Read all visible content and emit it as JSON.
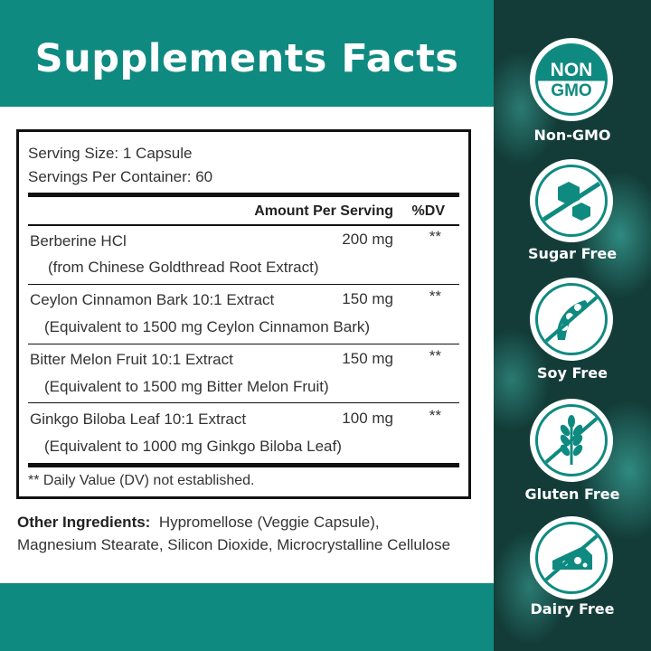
{
  "header": {
    "title": "Supplements Facts"
  },
  "facts": {
    "serving_size": "Serving Size: 1 Capsule",
    "servings_per_container": "Servings Per Container: 60",
    "col_amount": "Amount Per Serving",
    "col_dv": "%DV",
    "rows": [
      {
        "name": "Berberine HCl",
        "sub": "(from Chinese Goldthread Root Extract)",
        "amount": "200 mg",
        "dv": "**"
      },
      {
        "name": "Ceylon Cinnamon Bark 10:1 Extract",
        "sub": "(Equivalent to 1500 mg Ceylon Cinnamon Bark)",
        "amount": "150 mg",
        "dv": "**"
      },
      {
        "name": "Bitter Melon Fruit 10:1 Extract",
        "sub": "(Equivalent to 1500 mg Bitter Melon Fruit)",
        "amount": "150 mg",
        "dv": "**"
      },
      {
        "name": "Ginkgo Biloba Leaf 10:1 Extract",
        "sub": "(Equivalent to 1000 mg Ginkgo Biloba Leaf)",
        "amount": "100 mg",
        "dv": "**"
      }
    ],
    "footnote": "** Daily Value (DV) not established."
  },
  "other": {
    "label": "Other Ingredients:",
    "line1": "Hypromellose (Veggie Capsule),",
    "line2": "Magnesium Stearate, Silicon Dioxide, Microcrystalline Cellulose"
  },
  "badges": [
    {
      "label": "Non-GMO",
      "icon": "non-gmo-icon",
      "top": "NON",
      "bottom": "GMO"
    },
    {
      "label": "Sugar Free",
      "icon": "sugar-cube-icon"
    },
    {
      "label": "Soy Free",
      "icon": "soybean-icon"
    },
    {
      "label": "Gluten Free",
      "icon": "wheat-icon"
    },
    {
      "label": "Dairy Free",
      "icon": "cheese-icon"
    }
  ],
  "colors": {
    "brand": "#0f8a80",
    "side": "#133c38"
  }
}
